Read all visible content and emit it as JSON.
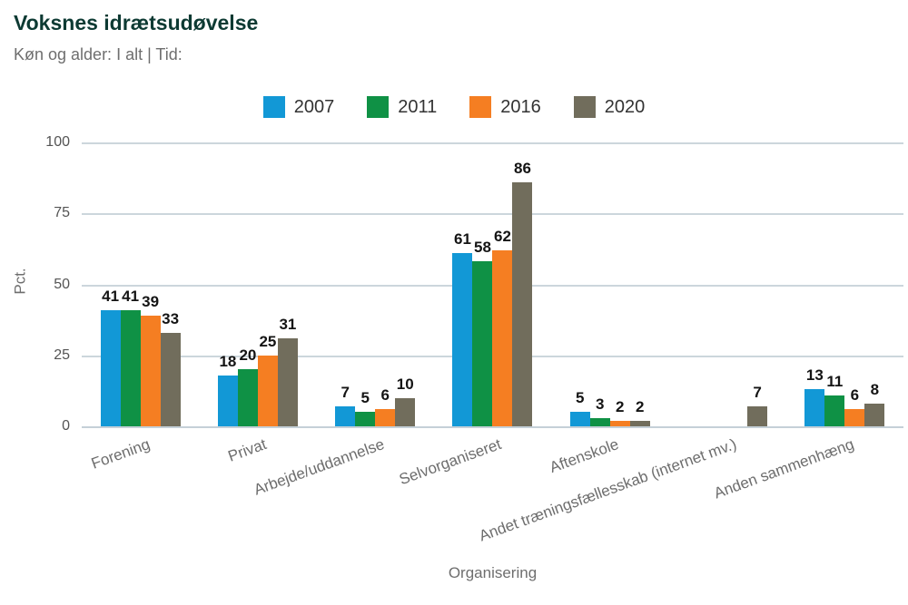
{
  "header": {
    "title": "Voksnes idrætsudøvelse",
    "subtitle": "Køn og alder: I alt | Tid:"
  },
  "colors": {
    "title": "#0d3a33",
    "subtitle_text": "#6e6e6e",
    "gridline": "#ccd6dc",
    "value_label": "#141414",
    "series_2007": "#1298d6",
    "series_2011": "#0f9145",
    "series_2016": "#f57e22",
    "series_2020": "#716d5c"
  },
  "chart_data": {
    "type": "bar",
    "title": "Voksnes idrætsudøvelse",
    "subtitle": "Køn og alder: I alt | Tid:",
    "categories": [
      "Forening",
      "Privat",
      "Arbejde/uddannelse",
      "Selvorganiseret",
      "Aftenskole",
      "Andet træningsfællesskab (internet mv.)",
      "Anden sammenhæng"
    ],
    "series": [
      {
        "name": "2007",
        "color": "#1298d6",
        "values": [
          41,
          18,
          7,
          61,
          5,
          null,
          13
        ]
      },
      {
        "name": "2011",
        "color": "#0f9145",
        "values": [
          41,
          20,
          5,
          58,
          3,
          null,
          11
        ]
      },
      {
        "name": "2016",
        "color": "#f57e22",
        "values": [
          39,
          25,
          6,
          62,
          2,
          null,
          6
        ]
      },
      {
        "name": "2020",
        "color": "#716d5c",
        "values": [
          33,
          31,
          10,
          86,
          2,
          7,
          8
        ]
      }
    ],
    "xlabel": "Organisering",
    "ylabel": "Pct.",
    "ylim": [
      0,
      100
    ],
    "yticks": [
      0,
      25,
      50,
      75,
      100
    ],
    "grid": true,
    "legend_position": "top",
    "value_labels_shown": true
  }
}
